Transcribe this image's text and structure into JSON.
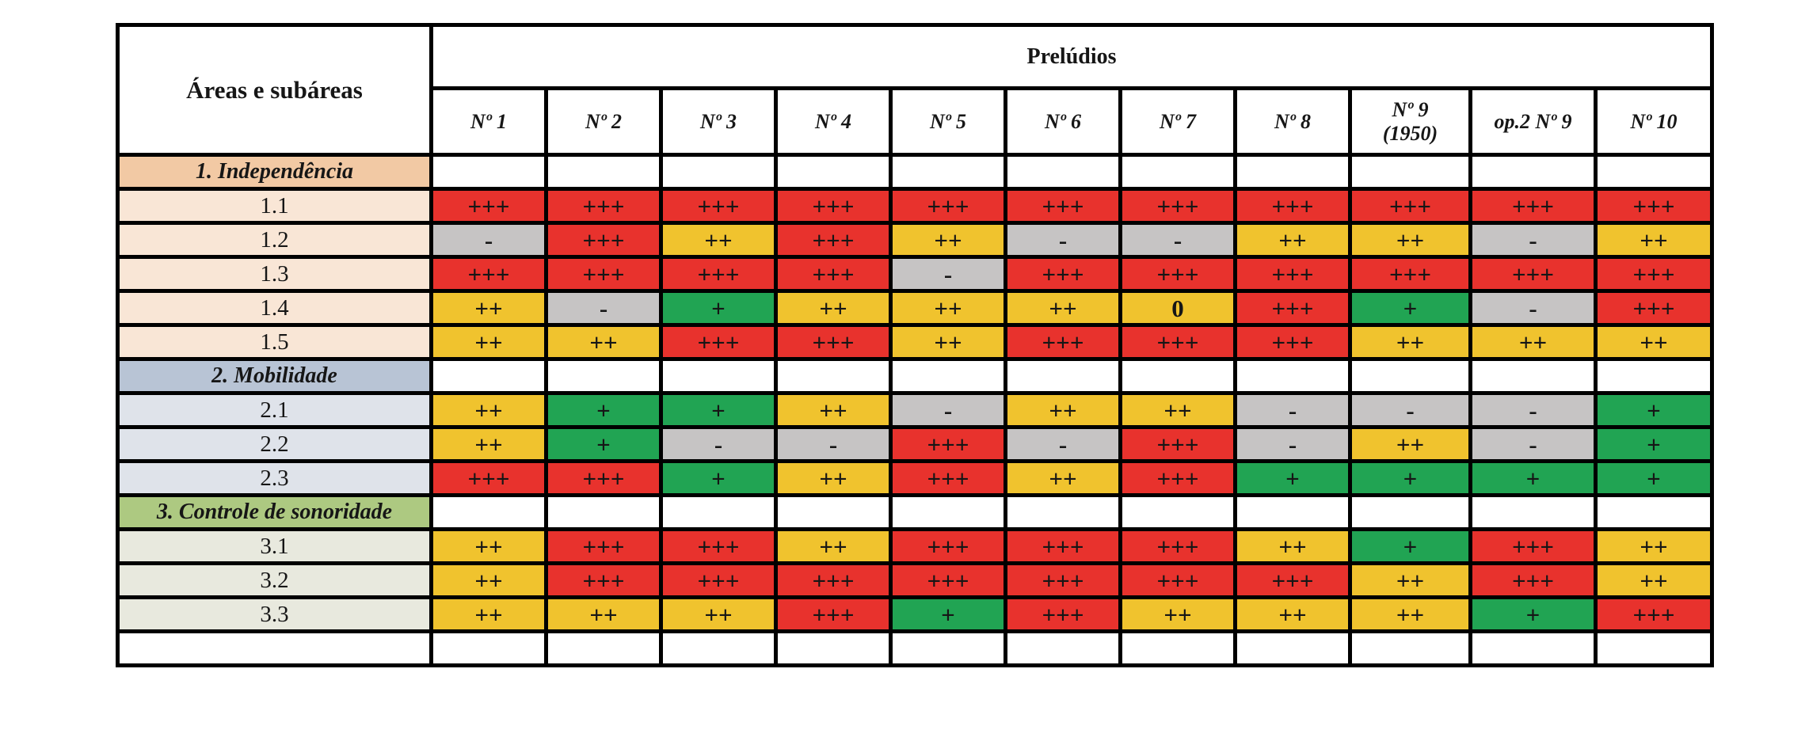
{
  "table": {
    "corner_label": "Áreas e subáreas",
    "group_header": "Prelúdios",
    "columns": [
      "Nº 1",
      "Nº 2",
      "Nº 3",
      "Nº 4",
      "Nº 5",
      "Nº 6",
      "Nº 7",
      "Nº 8",
      "Nº 9\n(1950)",
      "op.2 Nº 9",
      "Nº 10"
    ],
    "value_colors": {
      "red": "#e8322d",
      "yellow": "#f0c32e",
      "green": "#21a453",
      "gray": "#c6c4c4"
    },
    "sections": [
      {
        "label": "1. Independência",
        "header_bg": "#f2c9a4",
        "rows_bg": "#f9e6d6",
        "rows": [
          {
            "label": "1.1",
            "cells": [
              [
                "+++",
                "red"
              ],
              [
                "+++",
                "red"
              ],
              [
                "+++",
                "red"
              ],
              [
                "+++",
                "red"
              ],
              [
                "+++",
                "red"
              ],
              [
                "+++",
                "red"
              ],
              [
                "+++",
                "red"
              ],
              [
                "+++",
                "red"
              ],
              [
                "+++",
                "red"
              ],
              [
                "+++",
                "red"
              ],
              [
                "+++",
                "red"
              ]
            ]
          },
          {
            "label": "1.2",
            "cells": [
              [
                "-",
                "gray"
              ],
              [
                "+++",
                "red"
              ],
              [
                "++",
                "yellow"
              ],
              [
                "+++",
                "red"
              ],
              [
                "++",
                "yellow"
              ],
              [
                "-",
                "gray"
              ],
              [
                "-",
                "gray"
              ],
              [
                "++",
                "yellow"
              ],
              [
                "++",
                "yellow"
              ],
              [
                "-",
                "gray"
              ],
              [
                "++",
                "yellow"
              ]
            ]
          },
          {
            "label": "1.3",
            "cells": [
              [
                "+++",
                "red"
              ],
              [
                "+++",
                "red"
              ],
              [
                "+++",
                "red"
              ],
              [
                "+++",
                "red"
              ],
              [
                "-",
                "gray"
              ],
              [
                "+++",
                "red"
              ],
              [
                "+++",
                "red"
              ],
              [
                "+++",
                "red"
              ],
              [
                "+++",
                "red"
              ],
              [
                "+++",
                "red"
              ],
              [
                "+++",
                "red"
              ]
            ]
          },
          {
            "label": "1.4",
            "cells": [
              [
                "++",
                "yellow"
              ],
              [
                "-",
                "gray"
              ],
              [
                "+",
                "green"
              ],
              [
                "++",
                "yellow"
              ],
              [
                "++",
                "yellow"
              ],
              [
                "++",
                "yellow"
              ],
              [
                "0",
                "yellow"
              ],
              [
                "+++",
                "red"
              ],
              [
                "+",
                "green"
              ],
              [
                "-",
                "gray"
              ],
              [
                "+++",
                "red"
              ]
            ]
          },
          {
            "label": "1.5",
            "cells": [
              [
                "++",
                "yellow"
              ],
              [
                "++",
                "yellow"
              ],
              [
                "+++",
                "red"
              ],
              [
                "+++",
                "red"
              ],
              [
                "++",
                "yellow"
              ],
              [
                "+++",
                "red"
              ],
              [
                "+++",
                "red"
              ],
              [
                "+++",
                "red"
              ],
              [
                "++",
                "yellow"
              ],
              [
                "++",
                "yellow"
              ],
              [
                "++",
                "yellow"
              ]
            ]
          }
        ]
      },
      {
        "label": "2. Mobilidade",
        "header_bg": "#b8c4d5",
        "rows_bg": "#dfe3ea",
        "rows": [
          {
            "label": "2.1",
            "cells": [
              [
                "++",
                "yellow"
              ],
              [
                "+",
                "green"
              ],
              [
                "+",
                "green"
              ],
              [
                "++",
                "yellow"
              ],
              [
                "-",
                "gray"
              ],
              [
                "++",
                "yellow"
              ],
              [
                "++",
                "yellow"
              ],
              [
                "-",
                "gray"
              ],
              [
                "-",
                "gray"
              ],
              [
                "-",
                "gray"
              ],
              [
                "+",
                "green"
              ]
            ]
          },
          {
            "label": "2.2",
            "cells": [
              [
                "++",
                "yellow"
              ],
              [
                "+",
                "green"
              ],
              [
                "-",
                "gray"
              ],
              [
                "-",
                "gray"
              ],
              [
                "+++",
                "red"
              ],
              [
                "-",
                "gray"
              ],
              [
                "+++",
                "red"
              ],
              [
                "-",
                "gray"
              ],
              [
                "++",
                "yellow"
              ],
              [
                "-",
                "gray"
              ],
              [
                "+",
                "green"
              ]
            ]
          },
          {
            "label": "2.3",
            "cells": [
              [
                "+++",
                "red"
              ],
              [
                "+++",
                "red"
              ],
              [
                "+",
                "green"
              ],
              [
                "++",
                "yellow"
              ],
              [
                "+++",
                "red"
              ],
              [
                "++",
                "yellow"
              ],
              [
                "+++",
                "red"
              ],
              [
                "+",
                "green"
              ],
              [
                "+",
                "green"
              ],
              [
                "+",
                "green"
              ],
              [
                "+",
                "green"
              ]
            ]
          }
        ]
      },
      {
        "label": "3. Controle de sonoridade",
        "header_bg": "#adc981",
        "rows_bg": "#e8e9de",
        "rows": [
          {
            "label": "3.1",
            "cells": [
              [
                "++",
                "yellow"
              ],
              [
                "+++",
                "red"
              ],
              [
                "+++",
                "red"
              ],
              [
                "++",
                "yellow"
              ],
              [
                "+++",
                "red"
              ],
              [
                "+++",
                "red"
              ],
              [
                "+++",
                "red"
              ],
              [
                "++",
                "yellow"
              ],
              [
                "+",
                "green"
              ],
              [
                "+++",
                "red"
              ],
              [
                "++",
                "yellow"
              ]
            ]
          },
          {
            "label": "3.2",
            "cells": [
              [
                "++",
                "yellow"
              ],
              [
                "+++",
                "red"
              ],
              [
                "+++",
                "red"
              ],
              [
                "+++",
                "red"
              ],
              [
                "+++",
                "red"
              ],
              [
                "+++",
                "red"
              ],
              [
                "+++",
                "red"
              ],
              [
                "+++",
                "red"
              ],
              [
                "++",
                "yellow"
              ],
              [
                "+++",
                "red"
              ],
              [
                "++",
                "yellow"
              ]
            ]
          },
          {
            "label": "3.3",
            "cells": [
              [
                "++",
                "yellow"
              ],
              [
                "++",
                "yellow"
              ],
              [
                "++",
                "yellow"
              ],
              [
                "+++",
                "red"
              ],
              [
                "+",
                "green"
              ],
              [
                "+++",
                "red"
              ],
              [
                "++",
                "yellow"
              ],
              [
                "++",
                "yellow"
              ],
              [
                "++",
                "yellow"
              ],
              [
                "+",
                "green"
              ],
              [
                "+++",
                "red"
              ]
            ]
          }
        ]
      }
    ],
    "bottom_row": {
      "label": "",
      "cells": [
        "",
        "",
        "",
        "",
        "",
        "",
        "",
        "",
        "",
        "",
        ""
      ]
    }
  }
}
